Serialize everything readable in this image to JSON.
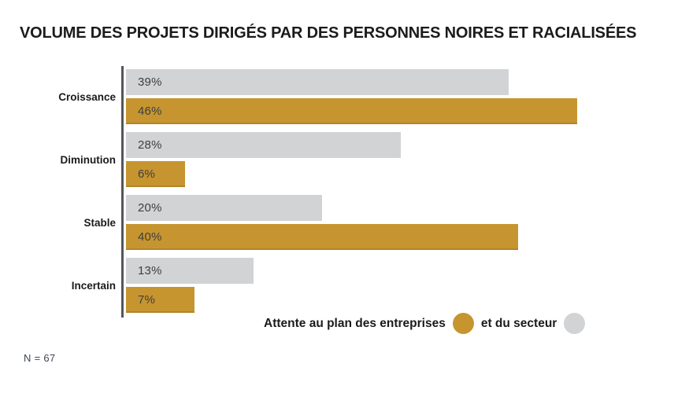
{
  "title": "VOLUME DES PROJETS DIRIGÉS PAR DES PERSONNES NOIRES ET RACIALISÉES",
  "footnote": "N = 67",
  "legend": {
    "entreprises_label": "Attente au plan des entreprises",
    "secteur_label": "et du secteur"
  },
  "colors": {
    "gold": "#C6952F",
    "gray": "#D1D3D4",
    "axis": "#55565A",
    "title_text": "#1B1B1B",
    "value_text": "#3E3E40",
    "footnote_text": "#3D4653"
  },
  "chart_data": {
    "type": "bar",
    "orientation": "horizontal",
    "title": "VOLUME DES PROJETS DIRIGÉS PAR DES PERSONNES NOIRES ET RACIALISÉES",
    "categories": [
      "Croissance",
      "Diminution",
      "Stable",
      "Incertain"
    ],
    "series": [
      {
        "name": "et du secteur",
        "color_key": "gray",
        "values": [
          39,
          28,
          20,
          13
        ]
      },
      {
        "name": "Attente au plan des entreprises",
        "color_key": "gold",
        "values": [
          46,
          6,
          40,
          7
        ]
      }
    ],
    "value_suffix": "%",
    "value_labels": "inside-start",
    "xlim": [
      0,
      57
    ],
    "grid": false,
    "legend_position": "bottom",
    "sample_size_note": "N = 67"
  }
}
